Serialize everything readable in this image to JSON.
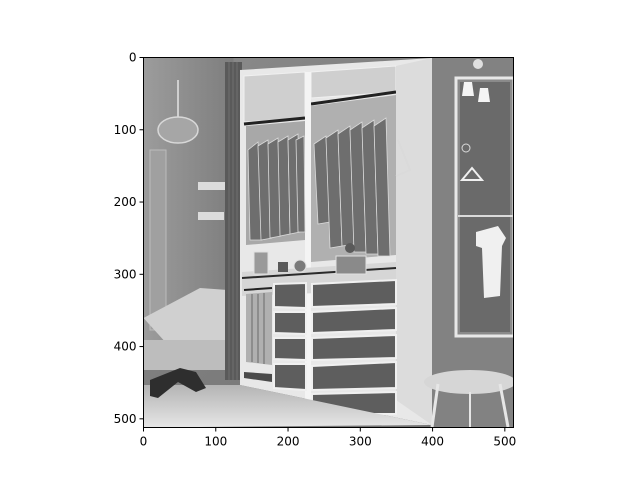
{
  "figure": {
    "axes_color": "#000000",
    "background": "#ffffff"
  },
  "image_panel": {
    "description_type": "grayscale-inverted-photo",
    "subject_icons": [
      "wardrobe-icon",
      "hanging-clothes-icon",
      "drawer-icon",
      "bed-icon",
      "stool-icon",
      "mirror-icon",
      "lamp-icon"
    ],
    "palette": {
      "bg": "#7a7a7a",
      "light": "#d8d8d8",
      "mid": "#9a9a9a",
      "dark": "#3c3c3c",
      "highlight": "#f2f2f2"
    }
  },
  "axes": {
    "x_ticks": [
      "0",
      "100",
      "200",
      "300",
      "400",
      "500"
    ],
    "y_ticks": [
      "0",
      "100",
      "200",
      "300",
      "400",
      "500"
    ],
    "x_range": [
      0,
      512
    ],
    "y_range": [
      0,
      512
    ],
    "y_inverted": true
  }
}
